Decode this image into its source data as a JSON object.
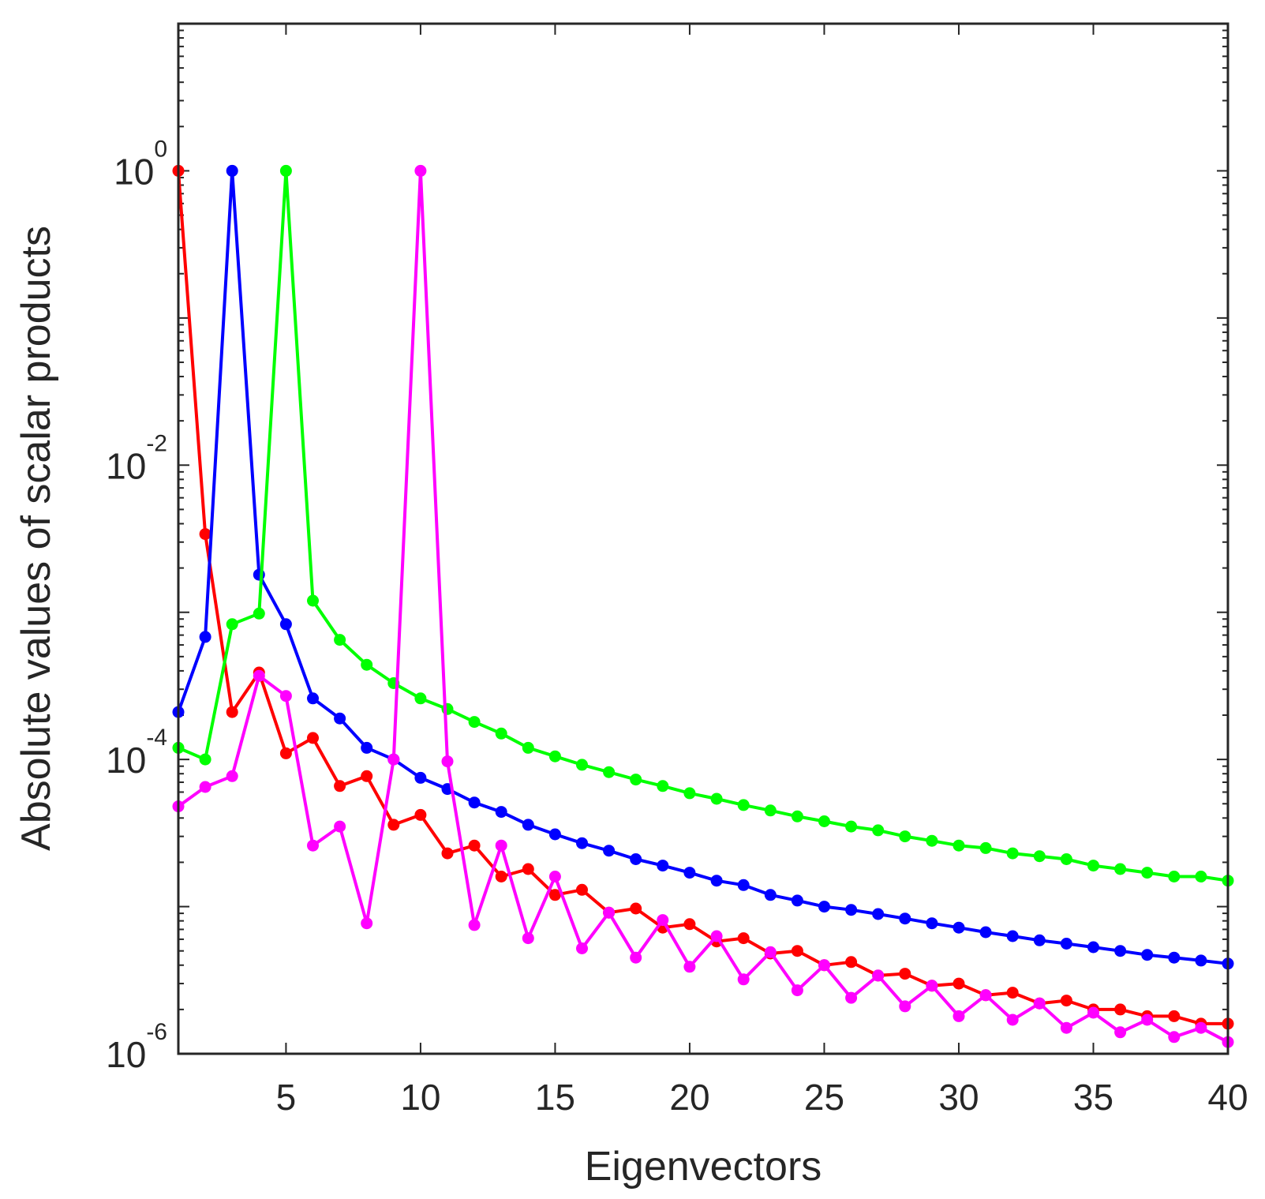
{
  "chart_data": {
    "type": "line",
    "title": "",
    "xlabel": "Eigenvectors",
    "ylabel": "Absolute values of scalar products",
    "xlim": [
      1,
      40
    ],
    "ylim": [
      1e-06,
      10
    ],
    "yscale": "log",
    "grid": false,
    "legend": "none",
    "x_ticks": [
      {
        "value": 5,
        "label": "5"
      },
      {
        "value": 10,
        "label": "10"
      },
      {
        "value": 15,
        "label": "15"
      },
      {
        "value": 20,
        "label": "20"
      },
      {
        "value": 25,
        "label": "25"
      },
      {
        "value": 30,
        "label": "30"
      },
      {
        "value": 35,
        "label": "35"
      },
      {
        "value": 40,
        "label": "40"
      }
    ],
    "y_ticks": [
      {
        "value": 1,
        "base": "10",
        "exponent": "0"
      },
      {
        "value": 0.01,
        "base": "10",
        "exponent": "-2"
      },
      {
        "value": 0.0001,
        "base": "10",
        "exponent": "-4"
      },
      {
        "value": 1e-06,
        "base": "10",
        "exponent": "-6"
      }
    ],
    "x": [
      1,
      2,
      3,
      4,
      5,
      6,
      7,
      8,
      9,
      10,
      11,
      12,
      13,
      14,
      15,
      16,
      17,
      18,
      19,
      20,
      21,
      22,
      23,
      24,
      25,
      26,
      27,
      28,
      29,
      30,
      31,
      32,
      33,
      34,
      35,
      36,
      37,
      38,
      39,
      40
    ],
    "series": [
      {
        "name": "series-red",
        "color": "#ff0000",
        "values": [
          1,
          0.0034,
          0.00021,
          0.00039,
          0.00011,
          0.00014,
          6.6e-05,
          7.7e-05,
          3.6e-05,
          4.2e-05,
          2.3e-05,
          2.6e-05,
          1.6e-05,
          1.8e-05,
          1.2e-05,
          1.3e-05,
          9.1e-06,
          9.7e-06,
          7.2e-06,
          7.6e-06,
          5.8e-06,
          6.1e-06,
          4.8e-06,
          5e-06,
          4e-06,
          4.2e-06,
          3.4e-06,
          3.5e-06,
          2.9e-06,
          3e-06,
          2.5e-06,
          2.6e-06,
          2.2e-06,
          2.3e-06,
          2e-06,
          2e-06,
          1.8e-06,
          1.8e-06,
          1.6e-06,
          1.6e-06
        ]
      },
      {
        "name": "series-blue",
        "color": "#0000ff",
        "values": [
          0.00021,
          0.00068,
          1,
          0.0018,
          0.00083,
          0.00026,
          0.00019,
          0.00012,
          0.0001,
          7.5e-05,
          6.3e-05,
          5.1e-05,
          4.4e-05,
          3.6e-05,
          3.1e-05,
          2.7e-05,
          2.4e-05,
          2.1e-05,
          1.9e-05,
          1.7e-05,
          1.5e-05,
          1.4e-05,
          1.2e-05,
          1.1e-05,
          1e-05,
          9.5e-06,
          8.9e-06,
          8.3e-06,
          7.7e-06,
          7.2e-06,
          6.7e-06,
          6.3e-06,
          5.9e-06,
          5.6e-06,
          5.3e-06,
          5e-06,
          4.7e-06,
          4.5e-06,
          4.3e-06,
          4.1e-06
        ]
      },
      {
        "name": "series-green",
        "color": "#00ff00",
        "values": [
          0.00012,
          0.0001,
          0.00083,
          0.00098,
          1,
          0.0012,
          0.00065,
          0.00044,
          0.00033,
          0.00026,
          0.00022,
          0.00018,
          0.00015,
          0.00012,
          0.000105,
          9.2e-05,
          8.2e-05,
          7.3e-05,
          6.6e-05,
          5.9e-05,
          5.4e-05,
          4.9e-05,
          4.5e-05,
          4.1e-05,
          3.8e-05,
          3.5e-05,
          3.3e-05,
          3e-05,
          2.8e-05,
          2.6e-05,
          2.5e-05,
          2.3e-05,
          2.2e-05,
          2.1e-05,
          1.9e-05,
          1.8e-05,
          1.7e-05,
          1.6e-05,
          1.6e-05,
          1.5e-05
        ]
      },
      {
        "name": "series-magenta",
        "color": "#ff00ff",
        "values": [
          4.8e-05,
          6.5e-05,
          7.7e-05,
          0.00037,
          0.00027,
          2.6e-05,
          3.5e-05,
          7.7e-06,
          0.0001,
          1,
          9.7e-05,
          7.5e-06,
          2.6e-05,
          6.1e-06,
          1.6e-05,
          5.2e-06,
          9.1e-06,
          4.5e-06,
          8.1e-06,
          3.9e-06,
          6.3e-06,
          3.2e-06,
          4.9e-06,
          2.7e-06,
          4e-06,
          2.4e-06,
          3.4e-06,
          2.1e-06,
          2.9e-06,
          1.8e-06,
          2.5e-06,
          1.7e-06,
          2.2e-06,
          1.5e-06,
          1.9e-06,
          1.4e-06,
          1.7e-06,
          1.3e-06,
          1.5e-06,
          1.2e-06
        ]
      }
    ]
  }
}
